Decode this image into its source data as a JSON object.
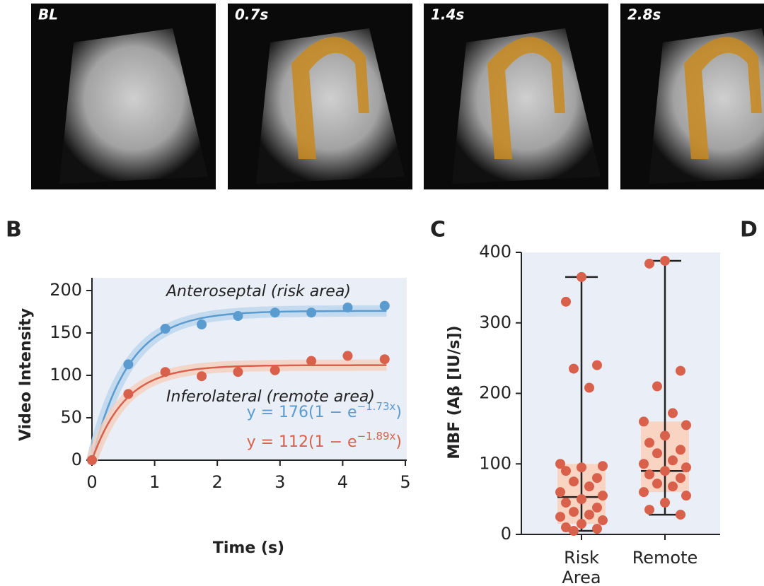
{
  "panel_a": {
    "frames": [
      "BL",
      "0.7s",
      "1.4s",
      "2.8s"
    ]
  },
  "panel_labels": [
    "B",
    "C",
    "D"
  ],
  "chart_data": [
    {
      "type": "line",
      "xlabel": "Time (s)",
      "ylabel": "Video Intensity",
      "xlim": [
        0,
        5
      ],
      "ylim": [
        0,
        215
      ],
      "xticks": [
        0,
        1,
        2,
        3,
        4,
        5
      ],
      "yticks": [
        0,
        50,
        100,
        150,
        200
      ],
      "x": [
        0,
        0.58,
        1.17,
        1.75,
        2.33,
        2.92,
        3.5,
        4.08,
        4.67
      ],
      "series": [
        {
          "name": "Anteroseptal (risk area)",
          "color": "#5a9bd0",
          "band_color": "#b9d5ec",
          "values": [
            0,
            113,
            155,
            160,
            170,
            174,
            174,
            180,
            182
          ],
          "fit": {
            "amplitude": 176,
            "rate": 1.73
          },
          "equation": {
            "text": "y = 176(1 − e",
            "exponent": "−1.73x",
            "close": ")"
          }
        },
        {
          "name": "Inferolateral (remote area)",
          "color": "#d9614c",
          "band_color": "#f6cfbd",
          "values": [
            0,
            78,
            104,
            99,
            104,
            106,
            117,
            123,
            119
          ],
          "fit": {
            "amplitude": 112,
            "rate": 1.89
          },
          "equation": {
            "text": "y = 112(1 − e",
            "exponent": "−1.89x",
            "close": ")"
          }
        }
      ]
    },
    {
      "type": "box",
      "ylabel": "MBF (Aβ [IU/s])",
      "ylim": [
        0,
        400
      ],
      "yticks": [
        0,
        100,
        200,
        300,
        400
      ],
      "categories": [
        "Risk Area",
        "Remote"
      ],
      "box_color": "#f9d4c2",
      "point_color": "#d9614c",
      "boxes": [
        {
          "min": 5,
          "q1": 15,
          "median": 53,
          "q3": 100,
          "max": 365
        },
        {
          "min": 28,
          "q1": 60,
          "median": 90,
          "q3": 160,
          "max": 388
        }
      ],
      "points": [
        [
          365,
          330,
          240,
          235,
          208,
          100,
          97,
          95,
          90,
          80,
          75,
          68,
          60,
          55,
          50,
          45,
          38,
          32,
          28,
          25,
          20,
          15,
          10,
          8,
          5
        ],
        [
          388,
          384,
          232,
          210,
          172,
          160,
          155,
          140,
          130,
          120,
          115,
          105,
          100,
          95,
          90,
          85,
          80,
          72,
          68,
          60,
          55,
          45,
          35,
          28
        ]
      ]
    }
  ]
}
